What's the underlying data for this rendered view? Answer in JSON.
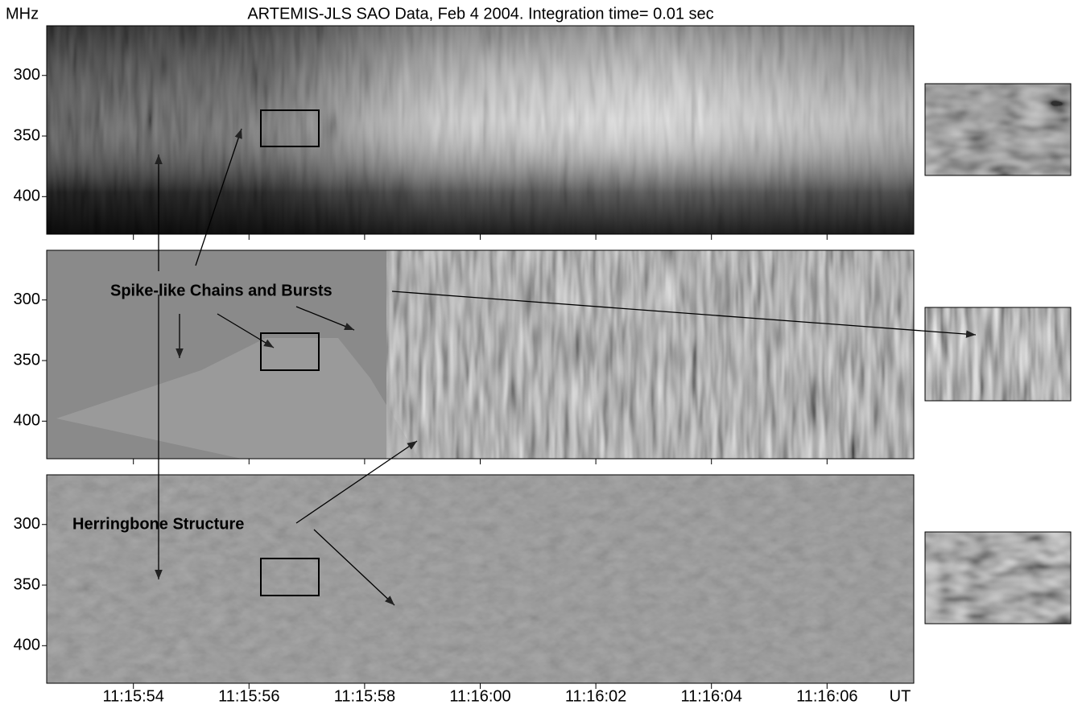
{
  "chart_data": {
    "type": "spectrogram",
    "title": "ARTEMIS-JLS SAO Data, Feb  4 2004. Integration time= 0.01 sec",
    "y_unit": "MHz",
    "x_unit": "UT",
    "xlim": [
      40552.5,
      40567.5
    ],
    "xticks": [
      {
        "value": 40554,
        "label": "11:15:54"
      },
      {
        "value": 40556,
        "label": "11:15:56"
      },
      {
        "value": 40558,
        "label": "11:15:58"
      },
      {
        "value": 40560,
        "label": "11:16:00"
      },
      {
        "value": 40562,
        "label": "11:16:02"
      },
      {
        "value": 40564,
        "label": "11:16:04"
      },
      {
        "value": 40566,
        "label": "11:16:06"
      }
    ],
    "panels": [
      {
        "ylim": [
          431,
          259
        ],
        "yticks": [
          300,
          350,
          400
        ]
      },
      {
        "ylim": [
          431,
          259
        ],
        "yticks": [
          300,
          350,
          400
        ]
      },
      {
        "ylim": [
          431,
          259
        ],
        "yticks": [
          300,
          350,
          400
        ]
      }
    ],
    "annotations": [
      "Spike-like Chains and Bursts",
      "Herringbone Structure"
    ]
  }
}
